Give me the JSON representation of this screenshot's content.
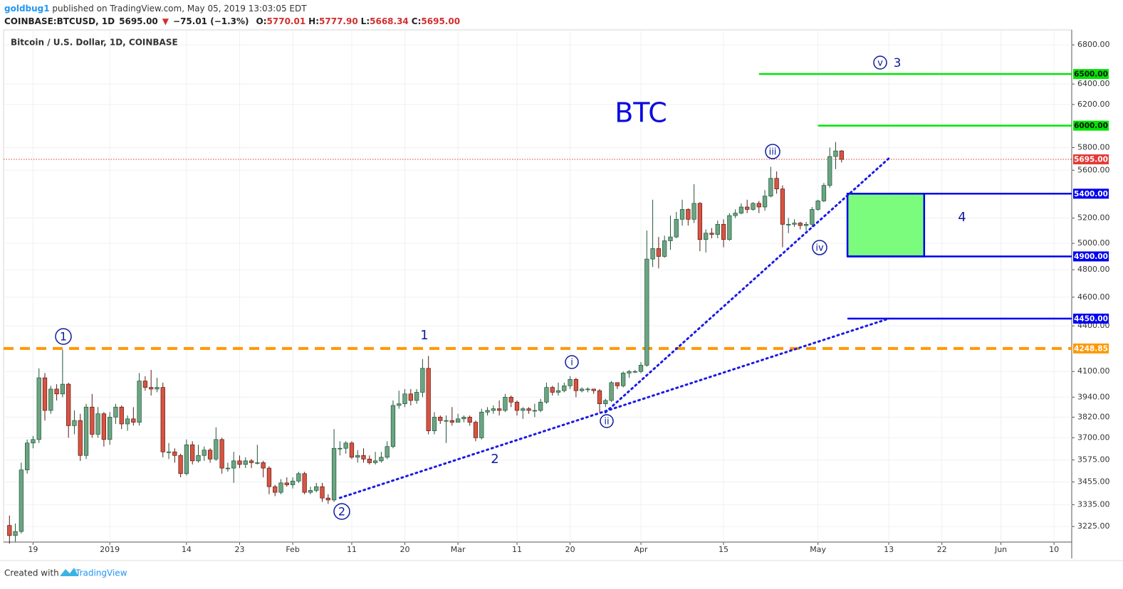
{
  "header": {
    "user": "goldbug1",
    "published": " published on TradingView.com, May 05, 2019 13:03:05 EDT",
    "symbol": "COINBASE:BTCUSD, 1D",
    "price": "5695.00",
    "arrow": "▼",
    "change": "−75.01 (−1.3%)",
    "ohlc": [
      {
        "label": "O:",
        "value": "5770.01"
      },
      {
        "label": "H:",
        "value": "5777.90"
      },
      {
        "label": "L:",
        "value": "5668.34"
      },
      {
        "label": "C:",
        "value": "5695.00"
      }
    ]
  },
  "footer": {
    "created": "Created with",
    "brand": "TradingView"
  },
  "chart_data": {
    "type": "candlestick",
    "title": "Bitcoin / U.S. Dollar, 1D, COINBASE",
    "log_scale": true,
    "grid": true,
    "up_color": "#6ba583",
    "down_color": "#d75442",
    "xlim": [
      "2018-12-14",
      "2019-06-13"
    ],
    "ylim": [
      3148,
      6960
    ],
    "xticks": [
      {
        "value": "2018-12-19",
        "label": "19"
      },
      {
        "value": "2019-01-01",
        "label": "2019"
      },
      {
        "value": "2019-01-14",
        "label": "14"
      },
      {
        "value": "2019-01-23",
        "label": "23"
      },
      {
        "value": "2019-02-01",
        "label": "Feb"
      },
      {
        "value": "2019-02-11",
        "label": "11"
      },
      {
        "value": "2019-02-20",
        "label": "20"
      },
      {
        "value": "2019-03-01",
        "label": "Mar"
      },
      {
        "value": "2019-03-11",
        "label": "11"
      },
      {
        "value": "2019-03-20",
        "label": "20"
      },
      {
        "value": "2019-04-01",
        "label": "Apr"
      },
      {
        "value": "2019-04-15",
        "label": "15"
      },
      {
        "value": "2019-05-01",
        "label": "May"
      },
      {
        "value": "2019-05-13",
        "label": "13"
      },
      {
        "value": "2019-05-22",
        "label": "22"
      },
      {
        "value": "2019-06-01",
        "label": "Jun"
      },
      {
        "value": "2019-06-10",
        "label": "10"
      }
    ],
    "yticks": [
      {
        "value": 6800,
        "label": "6800.00"
      },
      {
        "value": 6400,
        "label": "6400.00"
      },
      {
        "value": 6200,
        "label": "6200.00"
      },
      {
        "value": 5800,
        "label": "5800.00"
      },
      {
        "value": 5600,
        "label": "5600.00"
      },
      {
        "value": 5200,
        "label": "5200.00"
      },
      {
        "value": 5000,
        "label": "5000.00"
      },
      {
        "value": 4800,
        "label": "4800.00"
      },
      {
        "value": 4600,
        "label": "4600.00"
      },
      {
        "value": 4400,
        "label": "4400.00"
      },
      {
        "value": 4100,
        "label": "4100.00"
      },
      {
        "value": 3940,
        "label": "3940.00"
      },
      {
        "value": 3820,
        "label": "3820.00"
      },
      {
        "value": 3700,
        "label": "3700.00"
      },
      {
        "value": 3575,
        "label": "3575.00"
      },
      {
        "value": 3455,
        "label": "3455.00"
      },
      {
        "value": 3335,
        "label": "3335.00"
      },
      {
        "value": 3225,
        "label": "3225.00"
      }
    ],
    "x": [
      "2018-12-15",
      "2018-12-16",
      "2018-12-17",
      "2018-12-18",
      "2018-12-19",
      "2018-12-20",
      "2018-12-21",
      "2018-12-22",
      "2018-12-23",
      "2018-12-24",
      "2018-12-25",
      "2018-12-26",
      "2018-12-27",
      "2018-12-28",
      "2018-12-29",
      "2018-12-30",
      "2018-12-31",
      "2019-01-01",
      "2019-01-02",
      "2019-01-03",
      "2019-01-04",
      "2019-01-05",
      "2019-01-06",
      "2019-01-07",
      "2019-01-08",
      "2019-01-09",
      "2019-01-10",
      "2019-01-11",
      "2019-01-12",
      "2019-01-13",
      "2019-01-14",
      "2019-01-15",
      "2019-01-16",
      "2019-01-17",
      "2019-01-18",
      "2019-01-19",
      "2019-01-20",
      "2019-01-21",
      "2019-01-22",
      "2019-01-23",
      "2019-01-24",
      "2019-01-25",
      "2019-01-26",
      "2019-01-27",
      "2019-01-28",
      "2019-01-29",
      "2019-01-30",
      "2019-01-31",
      "2019-02-01",
      "2019-02-02",
      "2019-02-03",
      "2019-02-04",
      "2019-02-05",
      "2019-02-06",
      "2019-02-07",
      "2019-02-08",
      "2019-02-09",
      "2019-02-10",
      "2019-02-11",
      "2019-02-12",
      "2019-02-13",
      "2019-02-14",
      "2019-02-15",
      "2019-02-16",
      "2019-02-17",
      "2019-02-18",
      "2019-02-19",
      "2019-02-20",
      "2019-02-21",
      "2019-02-22",
      "2019-02-23",
      "2019-02-24",
      "2019-02-25",
      "2019-02-26",
      "2019-02-27",
      "2019-02-28",
      "2019-03-01",
      "2019-03-02",
      "2019-03-03",
      "2019-03-04",
      "2019-03-05",
      "2019-03-06",
      "2019-03-07",
      "2019-03-08",
      "2019-03-09",
      "2019-03-10",
      "2019-03-11",
      "2019-03-12",
      "2019-03-13",
      "2019-03-14",
      "2019-03-15",
      "2019-03-16",
      "2019-03-17",
      "2019-03-18",
      "2019-03-19",
      "2019-03-20",
      "2019-03-21",
      "2019-03-22",
      "2019-03-23",
      "2019-03-24",
      "2019-03-25",
      "2019-03-26",
      "2019-03-27",
      "2019-03-28",
      "2019-03-29",
      "2019-03-30",
      "2019-03-31",
      "2019-04-01",
      "2019-04-02",
      "2019-04-03",
      "2019-04-04",
      "2019-04-05",
      "2019-04-06",
      "2019-04-07",
      "2019-04-08",
      "2019-04-09",
      "2019-04-10",
      "2019-04-11",
      "2019-04-12",
      "2019-04-13",
      "2019-04-14",
      "2019-04-15",
      "2019-04-16",
      "2019-04-17",
      "2019-04-18",
      "2019-04-19",
      "2019-04-20",
      "2019-04-21",
      "2019-04-22",
      "2019-04-23",
      "2019-04-24",
      "2019-04-25",
      "2019-04-26",
      "2019-04-27",
      "2019-04-28",
      "2019-04-29",
      "2019-04-30",
      "2019-05-01",
      "2019-05-02",
      "2019-05-03",
      "2019-05-04",
      "2019-05-05"
    ],
    "open": [
      3230,
      3180,
      3200,
      3520,
      3670,
      3690,
      4060,
      3860,
      3990,
      3960,
      4020,
      3770,
      3800,
      3600,
      3880,
      3720,
      3840,
      3690,
      3820,
      3880,
      3780,
      3810,
      3790,
      4040,
      4000,
      3990,
      4000,
      3620,
      3620,
      3600,
      3500,
      3660,
      3570,
      3600,
      3630,
      3580,
      3690,
      3530,
      3530,
      3570,
      3550,
      3570,
      3560,
      3560,
      3530,
      3430,
      3400,
      3450,
      3440,
      3460,
      3500,
      3400,
      3410,
      3430,
      3370,
      3360,
      3640,
      3640,
      3670,
      3590,
      3600,
      3580,
      3560,
      3570,
      3590,
      3650,
      3890,
      3900,
      3960,
      3920,
      3970,
      4120,
      3740,
      3820,
      3800,
      3800,
      3790,
      3810,
      3820,
      3790,
      3700,
      3850,
      3860,
      3870,
      3860,
      3940,
      3910,
      3860,
      3870,
      3860,
      3860,
      3910,
      4000,
      3970,
      3980,
      4010,
      4050,
      3980,
      3990,
      3990,
      3980,
      3900,
      3920,
      4030,
      4010,
      4090,
      4100,
      4100,
      4140,
      4880,
      4960,
      4900,
      5020,
      5050,
      5190,
      5270,
      5190,
      5320,
      5030,
      5080,
      5070,
      5150,
      5030,
      5220,
      5240,
      5290,
      5270,
      5320,
      5290,
      5380,
      5530,
      5440,
      5150,
      5150,
      5160,
      5140,
      5150,
      5270,
      5340,
      5470,
      5720,
      5770.01
    ],
    "high": [
      3280,
      3240,
      3560,
      3690,
      3710,
      4120,
      4090,
      4010,
      4020,
      4240,
      4030,
      3860,
      3840,
      3900,
      3960,
      3880,
      3850,
      3850,
      3900,
      3890,
      3830,
      3880,
      4090,
      4070,
      4110,
      4060,
      4030,
      3670,
      3640,
      3610,
      3690,
      3680,
      3660,
      3650,
      3640,
      3760,
      3700,
      3560,
      3620,
      3600,
      3590,
      3580,
      3660,
      3570,
      3540,
      3440,
      3470,
      3480,
      3480,
      3510,
      3510,
      3430,
      3450,
      3450,
      3390,
      3750,
      3680,
      3680,
      3680,
      3630,
      3640,
      3600,
      3620,
      3620,
      3680,
      3920,
      3980,
      3990,
      3990,
      3990,
      4180,
      4200,
      3850,
      3830,
      3830,
      3880,
      3840,
      3830,
      3830,
      3800,
      3870,
      3880,
      3890,
      3920,
      3960,
      3950,
      3920,
      3880,
      3880,
      3900,
      3930,
      4030,
      4010,
      4030,
      4030,
      4070,
      4060,
      4000,
      4000,
      3990,
      3990,
      3930,
      4040,
      4030,
      4100,
      4110,
      4110,
      4160,
      5100,
      5350,
      5050,
      5060,
      5220,
      5250,
      5350,
      5280,
      5480,
      5330,
      5110,
      5120,
      5180,
      5190,
      5240,
      5270,
      5320,
      5350,
      5330,
      5340,
      5430,
      5630,
      5590,
      5470,
      5200,
      5190,
      5170,
      5170,
      5290,
      5350,
      5490,
      5800,
      5850,
      5777.9
    ],
    "low": [
      3140,
      3150,
      3190,
      3500,
      3640,
      3670,
      3800,
      3840,
      3920,
      3940,
      3700,
      3720,
      3570,
      3580,
      3700,
      3700,
      3650,
      3660,
      3780,
      3750,
      3740,
      3770,
      3770,
      3980,
      3950,
      3970,
      3590,
      3580,
      3560,
      3480,
      3490,
      3550,
      3560,
      3570,
      3560,
      3570,
      3500,
      3510,
      3450,
      3530,
      3530,
      3530,
      3550,
      3480,
      3390,
      3380,
      3390,
      3430,
      3420,
      3450,
      3390,
      3390,
      3400,
      3350,
      3340,
      3350,
      3600,
      3610,
      3580,
      3560,
      3560,
      3550,
      3550,
      3560,
      3580,
      3640,
      3870,
      3880,
      3890,
      3900,
      3940,
      3720,
      3720,
      3780,
      3670,
      3770,
      3790,
      3790,
      3770,
      3680,
      3690,
      3830,
      3840,
      3830,
      3850,
      3880,
      3830,
      3810,
      3840,
      3820,
      3850,
      3900,
      3950,
      3950,
      3970,
      3990,
      3940,
      3970,
      3970,
      3960,
      3850,
      3880,
      3910,
      3990,
      4000,
      4060,
      4090,
      4090,
      4130,
      4820,
      4810,
      4890,
      4950,
      5040,
      5140,
      5140,
      5160,
      4940,
      4930,
      5040,
      5040,
      4970,
      5020,
      5200,
      5230,
      5240,
      5260,
      5240,
      5260,
      5370,
      5400,
      4970,
      5080,
      5130,
      5110,
      5100,
      5130,
      5260,
      5330,
      5450,
      5610,
      5668.34
    ],
    "close": [
      3180,
      3200,
      3520,
      3670,
      3690,
      4060,
      3860,
      3990,
      3960,
      4020,
      3770,
      3800,
      3600,
      3880,
      3720,
      3840,
      3690,
      3820,
      3880,
      3780,
      3810,
      3790,
      4040,
      4000,
      3990,
      4000,
      3620,
      3620,
      3600,
      3500,
      3660,
      3570,
      3600,
      3630,
      3580,
      3690,
      3530,
      3530,
      3570,
      3550,
      3570,
      3560,
      3560,
      3530,
      3430,
      3400,
      3450,
      3440,
      3460,
      3500,
      3400,
      3410,
      3430,
      3370,
      3360,
      3640,
      3640,
      3670,
      3590,
      3600,
      3580,
      3560,
      3570,
      3590,
      3650,
      3890,
      3900,
      3960,
      3920,
      3970,
      4120,
      3740,
      3820,
      3800,
      3800,
      3790,
      3810,
      3820,
      3790,
      3700,
      3850,
      3860,
      3870,
      3860,
      3940,
      3910,
      3860,
      3870,
      3860,
      3860,
      3910,
      4000,
      3970,
      3980,
      4010,
      4050,
      3980,
      3990,
      3990,
      3980,
      3900,
      3920,
      4030,
      4010,
      4090,
      4100,
      4100,
      4140,
      4880,
      4960,
      4900,
      5020,
      5050,
      5190,
      5270,
      5190,
      5320,
      5030,
      5080,
      5070,
      5150,
      5030,
      5220,
      5240,
      5290,
      5270,
      5320,
      5290,
      5380,
      5530,
      5440,
      5150,
      5150,
      5160,
      5140,
      5150,
      5270,
      5340,
      5470,
      5720,
      5770.01,
      5695
    ],
    "levels": [
      {
        "value": 6500,
        "label": "6500.00",
        "color": "#00e600",
        "style": "solid",
        "start": "2019-04-21"
      },
      {
        "value": 6000,
        "label": "6000.00",
        "color": "#00e600",
        "style": "solid",
        "start": "2019-05-01"
      },
      {
        "value": 5695,
        "label": "5695.00",
        "color": "#e53935",
        "style": "dotted",
        "start": "2018-12-14"
      },
      {
        "value": 5400,
        "label": "5400.00",
        "color": "#0000f0",
        "style": "solid",
        "start": "2019-05-06"
      },
      {
        "value": 4900,
        "label": "4900.00",
        "color": "#0000f0",
        "style": "solid",
        "start": "2019-05-06"
      },
      {
        "value": 4450,
        "label": "4450.00",
        "color": "#0000f0",
        "style": "solid",
        "start": "2019-05-06"
      },
      {
        "value": 4248.85,
        "label": "4248.85",
        "color": "#ff9800",
        "style": "dashed",
        "start": "2018-12-14"
      }
    ],
    "box": {
      "top": 5400,
      "bottom": 4900,
      "start": "2019-05-06",
      "end": "2019-05-19",
      "color": "#7cfc7c"
    },
    "trendlines": [
      {
        "from": [
          "2019-02-09",
          3371
        ],
        "to": [
          "2019-05-13",
          4450
        ]
      },
      {
        "from": [
          "2019-03-26",
          3849
        ],
        "to": [
          "2019-05-13",
          5703
        ]
      }
    ],
    "annotations": [
      "BTC",
      "1",
      "2",
      "1",
      "2",
      "i",
      "ii",
      "iii",
      "iv",
      "v",
      "3",
      "4"
    ]
  }
}
